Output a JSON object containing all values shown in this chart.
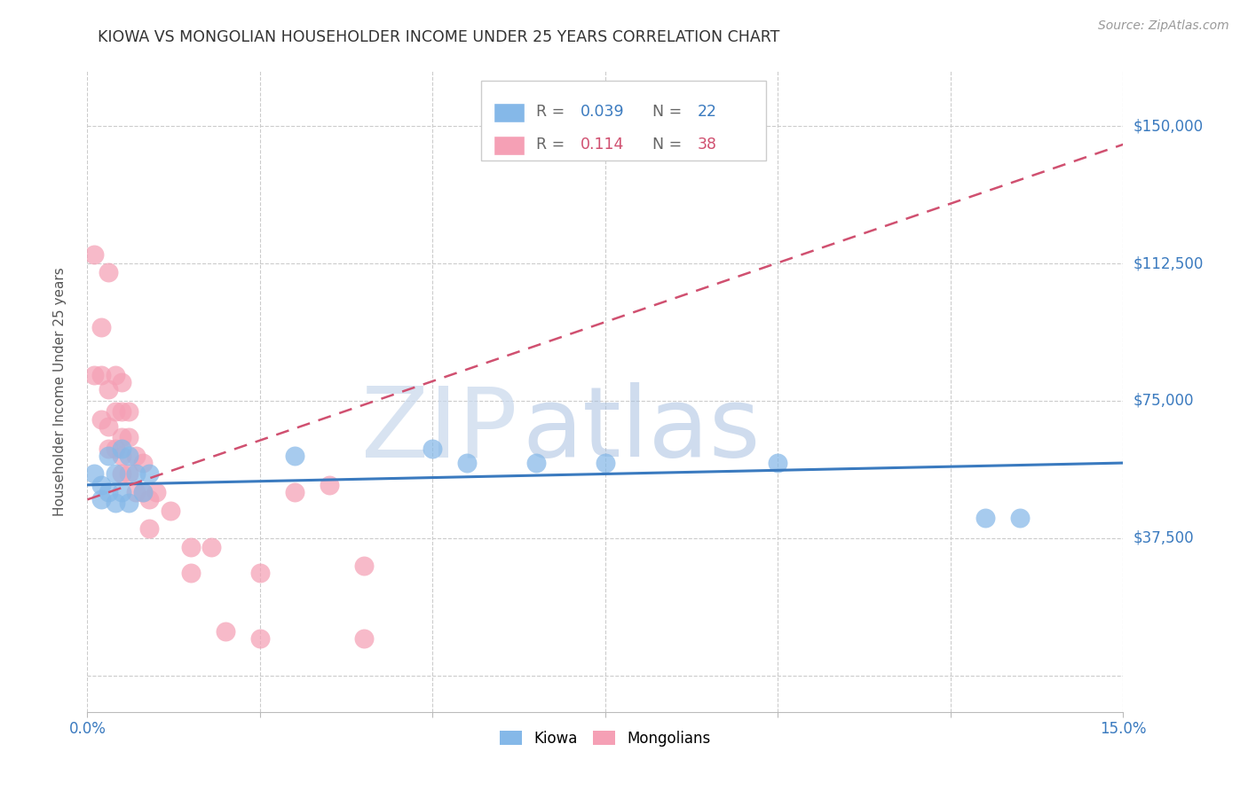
{
  "title": "KIOWA VS MONGOLIAN HOUSEHOLDER INCOME UNDER 25 YEARS CORRELATION CHART",
  "source": "Source: ZipAtlas.com",
  "ylabel": "Householder Income Under 25 years",
  "xlim": [
    0.0,
    0.15
  ],
  "ylim": [
    -10000,
    165000
  ],
  "yticks": [
    0,
    37500,
    75000,
    112500,
    150000
  ],
  "ytick_labels": [
    "",
    "$37,500",
    "$75,000",
    "$112,500",
    "$150,000"
  ],
  "xticks": [
    0.0,
    0.025,
    0.05,
    0.075,
    0.1,
    0.125,
    0.15
  ],
  "xtick_labels": [
    "0.0%",
    "",
    "",
    "",
    "",
    "",
    "15.0%"
  ],
  "kiowa_R": "0.039",
  "kiowa_N": "22",
  "mongolian_R": "0.114",
  "mongolian_N": "38",
  "kiowa_color": "#85b8e8",
  "mongolian_color": "#f5a0b5",
  "kiowa_line_color": "#3a7abf",
  "mongolian_line_color": "#d05070",
  "background_color": "#ffffff",
  "grid_color": "#cccccc",
  "kiowa_x": [
    0.001,
    0.002,
    0.002,
    0.003,
    0.003,
    0.004,
    0.004,
    0.005,
    0.005,
    0.006,
    0.006,
    0.007,
    0.008,
    0.009,
    0.03,
    0.05,
    0.055,
    0.065,
    0.075,
    0.1,
    0.13,
    0.135
  ],
  "kiowa_y": [
    55000,
    52000,
    48000,
    60000,
    50000,
    55000,
    47000,
    62000,
    50000,
    60000,
    47000,
    55000,
    50000,
    55000,
    60000,
    62000,
    58000,
    58000,
    58000,
    58000,
    43000,
    43000
  ],
  "mongolian_x": [
    0.001,
    0.001,
    0.002,
    0.002,
    0.002,
    0.003,
    0.003,
    0.003,
    0.003,
    0.004,
    0.004,
    0.004,
    0.005,
    0.005,
    0.005,
    0.005,
    0.005,
    0.006,
    0.006,
    0.006,
    0.007,
    0.007,
    0.008,
    0.008,
    0.009,
    0.009,
    0.01,
    0.012,
    0.015,
    0.015,
    0.018,
    0.02,
    0.025,
    0.025,
    0.03,
    0.035,
    0.04,
    0.04
  ],
  "mongolian_y": [
    115000,
    82000,
    95000,
    82000,
    70000,
    110000,
    78000,
    68000,
    62000,
    82000,
    72000,
    62000,
    80000,
    72000,
    65000,
    60000,
    55000,
    72000,
    65000,
    55000,
    60000,
    50000,
    58000,
    50000,
    48000,
    40000,
    50000,
    45000,
    35000,
    28000,
    35000,
    12000,
    10000,
    28000,
    50000,
    52000,
    10000,
    30000
  ],
  "kiowa_trendline_x": [
    0.0,
    0.15
  ],
  "kiowa_trendline_y": [
    52000,
    58000
  ],
  "mongolian_trendline_x": [
    0.0,
    0.15
  ],
  "mongolian_trendline_y": [
    48000,
    145000
  ],
  "watermark_zip_color": "#c8d8ec",
  "watermark_atlas_color": "#a8c0e0"
}
